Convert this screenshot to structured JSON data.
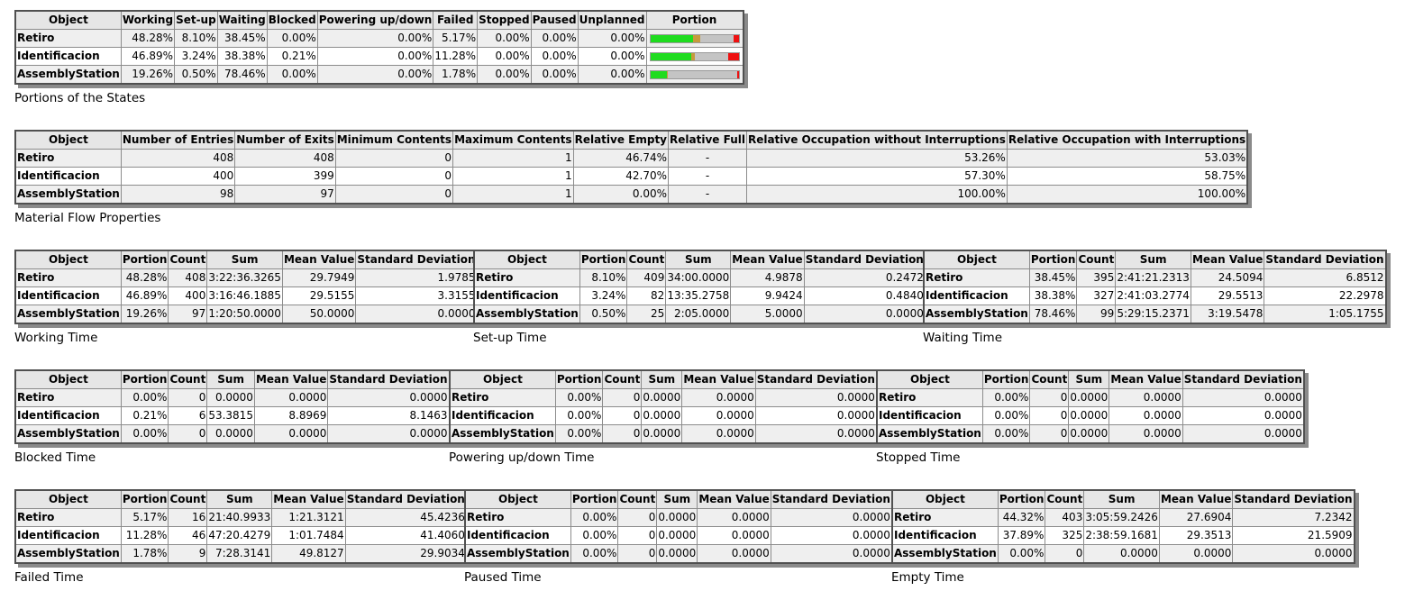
{
  "colors": {
    "working": "#1fdc1f",
    "setup": "#c69a3c",
    "waiting": "#c4c4c4",
    "blocked": "#e6e600",
    "powering": "#6495ed",
    "failed": "#ee1111"
  },
  "states": {
    "caption": "Portions of the States",
    "headers": [
      "Object",
      "Working",
      "Set-up",
      "Waiting",
      "Blocked",
      "Powering up/down",
      "Failed",
      "Stopped",
      "Paused",
      "Unplanned",
      "Portion"
    ],
    "rows": [
      {
        "object": "Retiro",
        "cells": [
          "48.28%",
          "8.10%",
          "38.45%",
          "0.00%",
          "0.00%",
          "5.17%",
          "0.00%",
          "0.00%",
          "0.00%"
        ],
        "portion": [
          48.28,
          8.1,
          38.45,
          0,
          0,
          5.17
        ]
      },
      {
        "object": "Identificacion",
        "cells": [
          "46.89%",
          "3.24%",
          "38.38%",
          "0.21%",
          "0.00%",
          "11.28%",
          "0.00%",
          "0.00%",
          "0.00%"
        ],
        "portion": [
          46.89,
          3.24,
          38.38,
          0.21,
          0,
          11.28
        ]
      },
      {
        "object": "AssemblyStation",
        "cells": [
          "19.26%",
          "0.50%",
          "78.46%",
          "0.00%",
          "0.00%",
          "1.78%",
          "0.00%",
          "0.00%",
          "0.00%"
        ],
        "portion": [
          19.26,
          0.5,
          78.46,
          0,
          0,
          1.78
        ]
      }
    ]
  },
  "material": {
    "caption": "Material Flow Properties",
    "headers": [
      "Object",
      "Number of Entries",
      "Number of Exits",
      "Minimum Contents",
      "Maximum Contents",
      "Relative Empty",
      "Relative Full",
      "Relative Occupation without Interruptions",
      "Relative Occupation with Interruptions"
    ],
    "rows": [
      {
        "object": "Retiro",
        "cells": [
          "408",
          "408",
          "0",
          "1",
          "46.74%",
          "-",
          "53.26%",
          "53.03%"
        ]
      },
      {
        "object": "Identificacion",
        "cells": [
          "400",
          "399",
          "0",
          "1",
          "42.70%",
          "-",
          "57.30%",
          "58.75%"
        ]
      },
      {
        "object": "AssemblyStation",
        "cells": [
          "98",
          "97",
          "0",
          "1",
          "0.00%",
          "-",
          "100.00%",
          "100.00%"
        ]
      }
    ]
  },
  "timeHeaders": [
    "Object",
    "Portion",
    "Count",
    "Sum",
    "Mean Value",
    "Standard Deviation"
  ],
  "working": {
    "caption": "Working Time",
    "rows": [
      {
        "object": "Retiro",
        "cells": [
          "48.28%",
          "408",
          "3:22:36.3265",
          "29.7949",
          "1.9785"
        ]
      },
      {
        "object": "Identificacion",
        "cells": [
          "46.89%",
          "400",
          "3:16:46.1885",
          "29.5155",
          "3.3155"
        ]
      },
      {
        "object": "AssemblyStation",
        "cells": [
          "19.26%",
          "97",
          "1:20:50.0000",
          "50.0000",
          "0.0000"
        ]
      }
    ]
  },
  "setup": {
    "caption": "Set-up Time",
    "rows": [
      {
        "object": "Retiro",
        "cells": [
          "8.10%",
          "409",
          "34:00.0000",
          "4.9878",
          "0.2472"
        ]
      },
      {
        "object": "Identificacion",
        "cells": [
          "3.24%",
          "82",
          "13:35.2758",
          "9.9424",
          "0.4840"
        ]
      },
      {
        "object": "AssemblyStation",
        "cells": [
          "0.50%",
          "25",
          "2:05.0000",
          "5.0000",
          "0.0000"
        ]
      }
    ]
  },
  "waiting": {
    "caption": "Waiting Time",
    "rows": [
      {
        "object": "Retiro",
        "cells": [
          "38.45%",
          "395",
          "2:41:21.2313",
          "24.5094",
          "6.8512"
        ]
      },
      {
        "object": "Identificacion",
        "cells": [
          "38.38%",
          "327",
          "2:41:03.2774",
          "29.5513",
          "22.2978"
        ]
      },
      {
        "object": "AssemblyStation",
        "cells": [
          "78.46%",
          "99",
          "5:29:15.2371",
          "3:19.5478",
          "1:05.1755"
        ]
      }
    ]
  },
  "blocked": {
    "caption": "Blocked Time",
    "rows": [
      {
        "object": "Retiro",
        "cells": [
          "0.00%",
          "0",
          "0.0000",
          "0.0000",
          "0.0000"
        ]
      },
      {
        "object": "Identificacion",
        "cells": [
          "0.21%",
          "6",
          "53.3815",
          "8.8969",
          "8.1463"
        ]
      },
      {
        "object": "AssemblyStation",
        "cells": [
          "0.00%",
          "0",
          "0.0000",
          "0.0000",
          "0.0000"
        ]
      }
    ]
  },
  "powering": {
    "caption": "Powering up/down Time",
    "rows": [
      {
        "object": "Retiro",
        "cells": [
          "0.00%",
          "0",
          "0.0000",
          "0.0000",
          "0.0000"
        ]
      },
      {
        "object": "Identificacion",
        "cells": [
          "0.00%",
          "0",
          "0.0000",
          "0.0000",
          "0.0000"
        ]
      },
      {
        "object": "AssemblyStation",
        "cells": [
          "0.00%",
          "0",
          "0.0000",
          "0.0000",
          "0.0000"
        ]
      }
    ]
  },
  "stopped": {
    "caption": "Stopped Time",
    "rows": [
      {
        "object": "Retiro",
        "cells": [
          "0.00%",
          "0",
          "0.0000",
          "0.0000",
          "0.0000"
        ]
      },
      {
        "object": "Identificacion",
        "cells": [
          "0.00%",
          "0",
          "0.0000",
          "0.0000",
          "0.0000"
        ]
      },
      {
        "object": "AssemblyStation",
        "cells": [
          "0.00%",
          "0",
          "0.0000",
          "0.0000",
          "0.0000"
        ]
      }
    ]
  },
  "failed": {
    "caption": "Failed Time",
    "rows": [
      {
        "object": "Retiro",
        "cells": [
          "5.17%",
          "16",
          "21:40.9933",
          "1:21.3121",
          "45.4236"
        ]
      },
      {
        "object": "Identificacion",
        "cells": [
          "11.28%",
          "46",
          "47:20.4279",
          "1:01.7484",
          "41.4060"
        ]
      },
      {
        "object": "AssemblyStation",
        "cells": [
          "1.78%",
          "9",
          "7:28.3141",
          "49.8127",
          "29.9034"
        ]
      }
    ]
  },
  "paused": {
    "caption": "Paused Time",
    "rows": [
      {
        "object": "Retiro",
        "cells": [
          "0.00%",
          "0",
          "0.0000",
          "0.0000",
          "0.0000"
        ]
      },
      {
        "object": "Identificacion",
        "cells": [
          "0.00%",
          "0",
          "0.0000",
          "0.0000",
          "0.0000"
        ]
      },
      {
        "object": "AssemblyStation",
        "cells": [
          "0.00%",
          "0",
          "0.0000",
          "0.0000",
          "0.0000"
        ]
      }
    ]
  },
  "empty": {
    "caption": "Empty Time",
    "rows": [
      {
        "object": "Retiro",
        "cells": [
          "44.32%",
          "403",
          "3:05:59.2426",
          "27.6904",
          "7.2342"
        ]
      },
      {
        "object": "Identificacion",
        "cells": [
          "37.89%",
          "325",
          "2:38:59.1681",
          "29.3513",
          "21.5909"
        ]
      },
      {
        "object": "AssemblyStation",
        "cells": [
          "0.00%",
          "0",
          "0.0000",
          "0.0000",
          "0.0000"
        ]
      }
    ]
  }
}
